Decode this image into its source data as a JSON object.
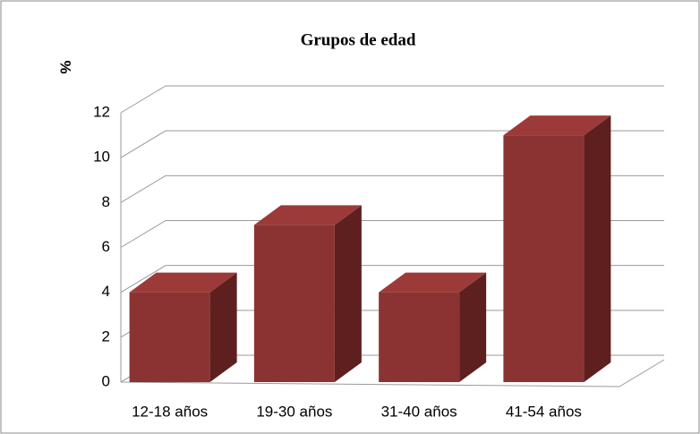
{
  "chart_data": {
    "type": "bar3d",
    "title": "Grupos de edad",
    "y_label": "%",
    "categories": [
      "12-18 años",
      "19-30 años",
      "31-40 años",
      "41-54 años"
    ],
    "values": [
      4,
      7,
      4,
      11
    ],
    "color": "#8b3333",
    "ylim": [
      0,
      12
    ],
    "yticks": [
      0,
      2,
      4,
      6,
      8,
      10,
      12
    ],
    "grid": true
  }
}
